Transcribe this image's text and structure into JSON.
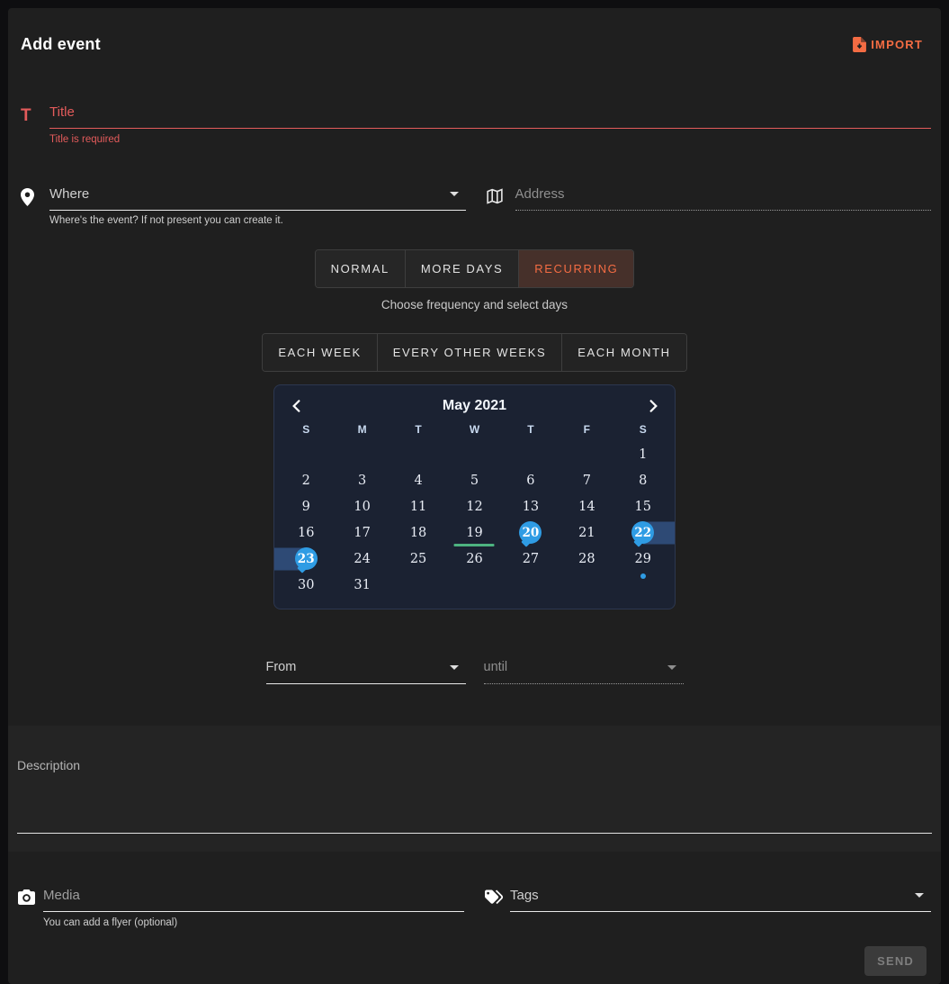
{
  "header": {
    "title": "Add event",
    "import_label": "IMPORT"
  },
  "title_field": {
    "icon_letter": "T",
    "placeholder": "Title",
    "error": "Title is required"
  },
  "where_field": {
    "placeholder": "Where",
    "helper": "Where's the event? If not present you can create it."
  },
  "address_field": {
    "placeholder": "Address"
  },
  "mode_tabs": {
    "items": [
      {
        "label": "NORMAL",
        "active": false
      },
      {
        "label": "MORE DAYS",
        "active": false
      },
      {
        "label": "RECURRING",
        "active": true
      }
    ]
  },
  "frequency": {
    "caption": "Choose frequency and select days",
    "items": [
      {
        "label": "EACH WEEK"
      },
      {
        "label": "EVERY OTHER WEEKS"
      },
      {
        "label": "EACH MONTH"
      }
    ]
  },
  "calendar": {
    "month_label": "May 2021",
    "day_headers": [
      "S",
      "M",
      "T",
      "W",
      "T",
      "F",
      "S"
    ],
    "weeks": [
      [
        {
          "d": ""
        },
        {
          "d": ""
        },
        {
          "d": ""
        },
        {
          "d": ""
        },
        {
          "d": ""
        },
        {
          "d": ""
        },
        {
          "d": "1"
        }
      ],
      [
        {
          "d": "2"
        },
        {
          "d": "3"
        },
        {
          "d": "4"
        },
        {
          "d": "5"
        },
        {
          "d": "6"
        },
        {
          "d": "7"
        },
        {
          "d": "8"
        }
      ],
      [
        {
          "d": "9"
        },
        {
          "d": "10"
        },
        {
          "d": "11"
        },
        {
          "d": "12"
        },
        {
          "d": "13"
        },
        {
          "d": "14"
        },
        {
          "d": "15"
        }
      ],
      [
        {
          "d": "16"
        },
        {
          "d": "17"
        },
        {
          "d": "18"
        },
        {
          "d": "19",
          "underline": true
        },
        {
          "d": "20",
          "balloon": true
        },
        {
          "d": "21"
        },
        {
          "d": "22",
          "balloon": true,
          "band": "right"
        }
      ],
      [
        {
          "d": "23",
          "balloon": true,
          "band": "left"
        },
        {
          "d": "24"
        },
        {
          "d": "25"
        },
        {
          "d": "26"
        },
        {
          "d": "27"
        },
        {
          "d": "28"
        },
        {
          "d": "29",
          "dot": true
        }
      ],
      [
        {
          "d": "30"
        },
        {
          "d": "31"
        },
        {
          "d": ""
        },
        {
          "d": ""
        },
        {
          "d": ""
        },
        {
          "d": ""
        },
        {
          "d": ""
        }
      ]
    ],
    "colors": {
      "selected_blue": "#2f9ce4",
      "range_band": "#2e4a75",
      "green_underline": "#4db380"
    }
  },
  "time_fields": {
    "from_placeholder": "From",
    "until_placeholder": "until"
  },
  "description_field": {
    "label": "Description"
  },
  "media_field": {
    "placeholder": "Media",
    "helper": "You can add a flyer (optional)"
  },
  "tags_field": {
    "placeholder": "Tags"
  },
  "actions": {
    "send_label": "SEND"
  },
  "colors": {
    "accent_orange": "#f46c43",
    "error_red": "#e35b5b"
  }
}
